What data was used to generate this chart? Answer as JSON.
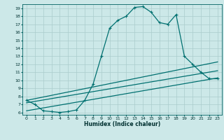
{
  "title": "",
  "xlabel": "Humidex (Indice chaleur)",
  "background_color": "#cce8e8",
  "grid_color": "#aacccc",
  "line_color": "#007070",
  "xlim": [
    -0.5,
    23.5
  ],
  "ylim": [
    5.7,
    19.5
  ],
  "xticks": [
    0,
    1,
    2,
    3,
    4,
    5,
    6,
    7,
    8,
    9,
    10,
    11,
    12,
    13,
    14,
    15,
    16,
    17,
    18,
    19,
    20,
    21,
    22,
    23
  ],
  "yticks": [
    6,
    7,
    8,
    9,
    10,
    11,
    12,
    13,
    14,
    15,
    16,
    17,
    18,
    19
  ],
  "series1_x": [
    0,
    1,
    2,
    3,
    4,
    5,
    6,
    7,
    8,
    9,
    10,
    11,
    12,
    13,
    14,
    15,
    16,
    17,
    18,
    19,
    20,
    21,
    22,
    23
  ],
  "series1_y": [
    7.5,
    7.0,
    6.2,
    6.1,
    6.0,
    6.1,
    6.3,
    7.5,
    9.5,
    13.0,
    16.5,
    17.5,
    18.0,
    19.1,
    19.2,
    18.5,
    17.2,
    17.0,
    18.2,
    13.0,
    12.0,
    11.0,
    10.2,
    10.2
  ],
  "series2_x": [
    0,
    23
  ],
  "series2_y": [
    7.5,
    12.3
  ],
  "series3_x": [
    0,
    23
  ],
  "series3_y": [
    7.2,
    11.2
  ],
  "series4_x": [
    0,
    23
  ],
  "series4_y": [
    6.2,
    10.3
  ]
}
